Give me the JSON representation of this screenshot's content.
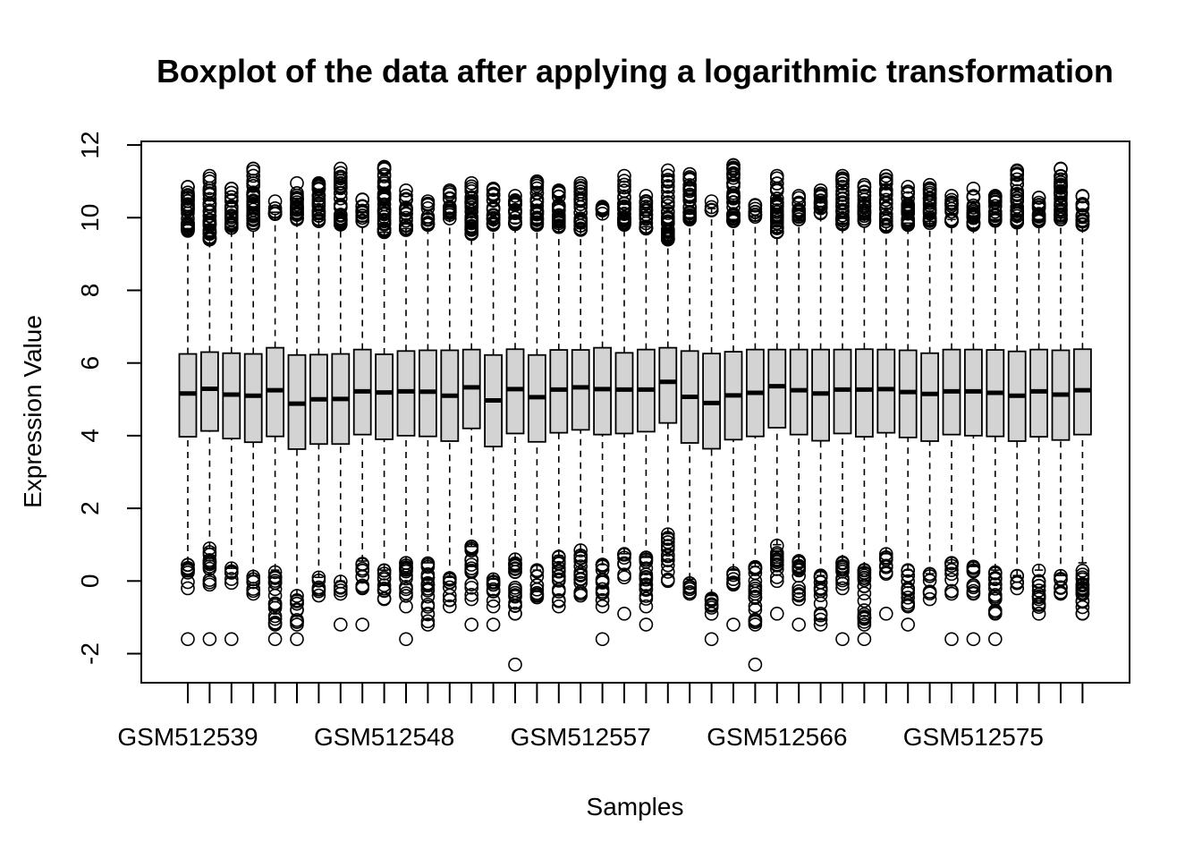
{
  "chart_data": {
    "type": "boxplot",
    "title": "Boxplot of the data after applying a logarithmic transformation",
    "xlabel": "Samples",
    "ylabel": "Expression Value",
    "ylim": [
      -2.8,
      12.1
    ],
    "yticks": [
      -2,
      0,
      2,
      4,
      6,
      8,
      10,
      12
    ],
    "first_sample_number": 512539,
    "sample_prefix": "GSM",
    "labeled_every": 9,
    "x_tick_labels": [
      "GSM512539",
      "GSM512548",
      "GSM512557",
      "GSM512566",
      "GSM512575"
    ],
    "box_fill": "#d3d3d3",
    "series": [
      {
        "q1": 3.97,
        "median": 5.16,
        "q3": 6.25,
        "whisker_low": 0.5,
        "whisker_high": 9.7,
        "out_low_min": -0.2,
        "out_low_max": 0.5,
        "out_high_min": 9.6,
        "out_high_max": 10.85,
        "extra_outliers": [
          -1.6
        ]
      },
      {
        "q1": 4.13,
        "median": 5.29,
        "q3": 6.3,
        "whisker_low": 0.9,
        "whisker_high": 9.5,
        "out_low_min": -0.1,
        "out_low_max": 0.9,
        "out_high_min": 9.4,
        "out_high_max": 11.15,
        "extra_outliers": [
          -1.6
        ]
      },
      {
        "q1": 3.92,
        "median": 5.13,
        "q3": 6.27,
        "whisker_low": 0.35,
        "whisker_high": 9.75,
        "out_low_min": -0.05,
        "out_low_max": 0.35,
        "out_high_min": 9.7,
        "out_high_max": 10.8,
        "extra_outliers": [
          -1.6
        ]
      },
      {
        "q1": 3.82,
        "median": 5.1,
        "q3": 6.25,
        "whisker_low": 0.15,
        "whisker_high": 9.8,
        "out_low_min": -0.35,
        "out_low_max": 0.15,
        "out_high_min": 9.8,
        "out_high_max": 11.35,
        "extra_outliers": []
      },
      {
        "q1": 3.98,
        "median": 5.25,
        "q3": 6.42,
        "whisker_low": 0.3,
        "whisker_high": 10.15,
        "out_low_min": -1.2,
        "out_low_max": 0.3,
        "out_high_min": 10.1,
        "out_high_max": 10.45,
        "extra_outliers": [
          -1.6
        ]
      },
      {
        "q1": 3.63,
        "median": 4.88,
        "q3": 6.22,
        "whisker_low": -0.4,
        "whisker_high": 9.95,
        "out_low_min": -1.2,
        "out_low_max": -0.4,
        "out_high_min": 9.95,
        "out_high_max": 10.95,
        "extra_outliers": [
          -1.6
        ]
      },
      {
        "q1": 3.77,
        "median": 5.0,
        "q3": 6.23,
        "whisker_low": 0.1,
        "whisker_high": 9.95,
        "out_low_min": -0.4,
        "out_low_max": 0.1,
        "out_high_min": 9.9,
        "out_high_max": 10.95,
        "extra_outliers": []
      },
      {
        "q1": 3.77,
        "median": 5.01,
        "q3": 6.25,
        "whisker_low": 0.0,
        "whisker_high": 9.8,
        "out_low_min": -0.35,
        "out_low_max": 0.0,
        "out_high_min": 9.8,
        "out_high_max": 11.35,
        "extra_outliers": [
          -1.2
        ]
      },
      {
        "q1": 4.03,
        "median": 5.22,
        "q3": 6.37,
        "whisker_low": 0.55,
        "whisker_high": 9.9,
        "out_low_min": -0.2,
        "out_low_max": 0.55,
        "out_high_min": 9.9,
        "out_high_max": 10.5,
        "extra_outliers": [
          -1.2
        ]
      },
      {
        "q1": 3.9,
        "median": 5.19,
        "q3": 6.24,
        "whisker_low": 0.3,
        "whisker_high": 9.6,
        "out_low_min": -0.5,
        "out_low_max": 0.3,
        "out_high_min": 9.6,
        "out_high_max": 11.4,
        "extra_outliers": []
      },
      {
        "q1": 4.0,
        "median": 5.22,
        "q3": 6.33,
        "whisker_low": 0.5,
        "whisker_high": 9.7,
        "out_low_min": -0.7,
        "out_low_max": 0.5,
        "out_high_min": 9.65,
        "out_high_max": 10.75,
        "extra_outliers": [
          -1.6
        ]
      },
      {
        "q1": 3.98,
        "median": 5.21,
        "q3": 6.35,
        "whisker_low": 0.5,
        "whisker_high": 9.85,
        "out_low_min": -1.2,
        "out_low_max": 0.5,
        "out_high_min": 9.8,
        "out_high_max": 10.45,
        "extra_outliers": []
      },
      {
        "q1": 3.85,
        "median": 5.1,
        "q3": 6.35,
        "whisker_low": 0.1,
        "whisker_high": 10.0,
        "out_low_min": -0.7,
        "out_low_max": 0.1,
        "out_high_min": 9.95,
        "out_high_max": 10.75,
        "extra_outliers": []
      },
      {
        "q1": 4.2,
        "median": 5.33,
        "q3": 6.37,
        "whisker_low": 0.95,
        "whisker_high": 9.6,
        "out_low_min": -0.5,
        "out_low_max": 0.95,
        "out_high_min": 9.55,
        "out_high_max": 10.95,
        "extra_outliers": [
          -1.2
        ]
      },
      {
        "q1": 3.7,
        "median": 4.97,
        "q3": 6.22,
        "whisker_low": 0.05,
        "whisker_high": 9.85,
        "out_low_min": -0.7,
        "out_low_max": 0.05,
        "out_high_min": 9.8,
        "out_high_max": 10.8,
        "extra_outliers": [
          -1.2
        ]
      },
      {
        "q1": 4.06,
        "median": 5.28,
        "q3": 6.38,
        "whisker_low": 0.6,
        "whisker_high": 9.85,
        "out_low_min": -0.9,
        "out_low_max": 0.6,
        "out_high_min": 9.8,
        "out_high_max": 10.6,
        "extra_outliers": [
          -2.3
        ]
      },
      {
        "q1": 3.83,
        "median": 5.06,
        "q3": 6.22,
        "whisker_low": 0.3,
        "whisker_high": 9.85,
        "out_low_min": -0.45,
        "out_low_max": 0.3,
        "out_high_min": 9.8,
        "out_high_max": 11.0,
        "extra_outliers": []
      },
      {
        "q1": 4.08,
        "median": 5.27,
        "q3": 6.36,
        "whisker_low": 0.7,
        "whisker_high": 9.75,
        "out_low_min": -0.7,
        "out_low_max": 0.7,
        "out_high_min": 9.7,
        "out_high_max": 10.75,
        "extra_outliers": []
      },
      {
        "q1": 4.16,
        "median": 5.33,
        "q3": 6.36,
        "whisker_low": 0.85,
        "whisker_high": 9.7,
        "out_low_min": -0.4,
        "out_low_max": 0.85,
        "out_high_min": 9.65,
        "out_high_max": 10.95,
        "extra_outliers": []
      },
      {
        "q1": 4.03,
        "median": 5.28,
        "q3": 6.42,
        "whisker_low": 0.45,
        "whisker_high": 10.1,
        "out_low_min": -0.7,
        "out_low_max": 0.45,
        "out_high_min": 10.05,
        "out_high_max": 10.3,
        "extra_outliers": [
          -1.6
        ]
      },
      {
        "q1": 4.06,
        "median": 5.27,
        "q3": 6.28,
        "whisker_low": 0.75,
        "whisker_high": 9.85,
        "out_low_min": 0.1,
        "out_low_max": 0.75,
        "out_high_min": 9.8,
        "out_high_max": 11.15,
        "extra_outliers": [
          -0.9
        ]
      },
      {
        "q1": 4.11,
        "median": 5.27,
        "q3": 6.37,
        "whisker_low": 0.65,
        "whisker_high": 9.75,
        "out_low_min": -0.7,
        "out_low_max": 0.65,
        "out_high_min": 9.7,
        "out_high_max": 10.6,
        "extra_outliers": [
          -1.2
        ]
      },
      {
        "q1": 4.35,
        "median": 5.48,
        "q3": 6.42,
        "whisker_low": 1.3,
        "whisker_high": 9.45,
        "out_low_min": 0.0,
        "out_low_max": 1.3,
        "out_high_min": 9.4,
        "out_high_max": 11.3,
        "extra_outliers": []
      },
      {
        "q1": 3.8,
        "median": 5.07,
        "q3": 6.33,
        "whisker_low": 0.05,
        "whisker_high": 10.0,
        "out_low_min": -0.35,
        "out_low_max": 0.05,
        "out_high_min": 9.95,
        "out_high_max": 11.2,
        "extra_outliers": []
      },
      {
        "q1": 3.64,
        "median": 4.9,
        "q3": 6.26,
        "whisker_low": -0.4,
        "whisker_high": 10.25,
        "out_low_min": -0.9,
        "out_low_max": -0.4,
        "out_high_min": 10.2,
        "out_high_max": 10.45,
        "extra_outliers": [
          -1.6
        ]
      },
      {
        "q1": 3.89,
        "median": 5.11,
        "q3": 6.31,
        "whisker_low": 0.3,
        "whisker_high": 9.95,
        "out_low_min": -0.1,
        "out_low_max": 0.3,
        "out_high_min": 9.9,
        "out_high_max": 11.45,
        "extra_outliers": [
          -1.2
        ]
      },
      {
        "q1": 3.98,
        "median": 5.18,
        "q3": 6.37,
        "whisker_low": 0.4,
        "whisker_high": 10.05,
        "out_low_min": -1.2,
        "out_low_max": 0.4,
        "out_high_min": 10.0,
        "out_high_max": 10.35,
        "extra_outliers": [
          -2.3
        ]
      },
      {
        "q1": 4.22,
        "median": 5.36,
        "q3": 6.37,
        "whisker_low": 1.0,
        "whisker_high": 9.65,
        "out_low_min": 0.0,
        "out_low_max": 1.0,
        "out_high_min": 9.6,
        "out_high_max": 11.15,
        "extra_outliers": [
          -0.9
        ]
      },
      {
        "q1": 4.03,
        "median": 5.25,
        "q3": 6.37,
        "whisker_low": 0.55,
        "whisker_high": 9.95,
        "out_low_min": -0.5,
        "out_low_max": 0.55,
        "out_high_min": 9.9,
        "out_high_max": 10.6,
        "extra_outliers": [
          -1.2
        ]
      },
      {
        "q1": 3.86,
        "median": 5.16,
        "q3": 6.37,
        "whisker_low": 0.15,
        "whisker_high": 10.15,
        "out_low_min": -1.2,
        "out_low_max": 0.15,
        "out_high_min": 10.1,
        "out_high_max": 10.75,
        "extra_outliers": []
      },
      {
        "q1": 4.06,
        "median": 5.27,
        "q3": 6.37,
        "whisker_low": 0.55,
        "whisker_high": 9.85,
        "out_low_min": -0.2,
        "out_low_max": 0.55,
        "out_high_min": 9.8,
        "out_high_max": 11.15,
        "extra_outliers": [
          -1.6
        ]
      },
      {
        "q1": 3.97,
        "median": 5.27,
        "q3": 6.38,
        "whisker_low": 0.35,
        "whisker_high": 9.95,
        "out_low_min": -1.2,
        "out_low_max": 0.35,
        "out_high_min": 9.9,
        "out_high_max": 10.9,
        "extra_outliers": [
          -1.6
        ]
      },
      {
        "q1": 4.08,
        "median": 5.28,
        "q3": 6.37,
        "whisker_low": 0.75,
        "whisker_high": 9.8,
        "out_low_min": 0.2,
        "out_low_max": 0.75,
        "out_high_min": 9.75,
        "out_high_max": 11.15,
        "extra_outliers": [
          -0.9
        ]
      },
      {
        "q1": 3.95,
        "median": 5.2,
        "q3": 6.35,
        "whisker_low": 0.3,
        "whisker_high": 9.85,
        "out_low_min": -0.7,
        "out_low_max": 0.3,
        "out_high_min": 9.8,
        "out_high_max": 10.85,
        "extra_outliers": [
          -1.2
        ]
      },
      {
        "q1": 3.85,
        "median": 5.15,
        "q3": 6.27,
        "whisker_low": 0.2,
        "whisker_high": 9.9,
        "out_low_min": -0.5,
        "out_low_max": 0.2,
        "out_high_min": 9.85,
        "out_high_max": 10.9,
        "extra_outliers": []
      },
      {
        "q1": 4.03,
        "median": 5.22,
        "q3": 6.37,
        "whisker_low": 0.5,
        "whisker_high": 9.95,
        "out_low_min": -0.35,
        "out_low_max": 0.5,
        "out_high_min": 9.9,
        "out_high_max": 10.6,
        "extra_outliers": [
          -1.6
        ]
      },
      {
        "q1": 4.0,
        "median": 5.22,
        "q3": 6.37,
        "whisker_low": 0.4,
        "whisker_high": 9.85,
        "out_low_min": -0.35,
        "out_low_max": 0.4,
        "out_high_min": 9.8,
        "out_high_max": 10.8,
        "extra_outliers": [
          -1.6
        ]
      },
      {
        "q1": 3.98,
        "median": 5.18,
        "q3": 6.36,
        "whisker_low": 0.3,
        "whisker_high": 9.95,
        "out_low_min": -0.9,
        "out_low_max": 0.3,
        "out_high_min": 9.9,
        "out_high_max": 10.6,
        "extra_outliers": [
          -1.6
        ]
      },
      {
        "q1": 3.85,
        "median": 5.1,
        "q3": 6.32,
        "whisker_low": 0.15,
        "whisker_high": 9.9,
        "out_low_min": -0.2,
        "out_low_max": 0.15,
        "out_high_min": 9.85,
        "out_high_max": 11.3,
        "extra_outliers": []
      },
      {
        "q1": 3.97,
        "median": 5.22,
        "q3": 6.37,
        "whisker_low": 0.3,
        "whisker_high": 9.95,
        "out_low_min": -0.9,
        "out_low_max": 0.3,
        "out_high_min": 9.9,
        "out_high_max": 10.55,
        "extra_outliers": []
      },
      {
        "q1": 3.88,
        "median": 5.13,
        "q3": 6.35,
        "whisker_low": 0.15,
        "whisker_high": 10.0,
        "out_low_min": -0.35,
        "out_low_max": 0.15,
        "out_high_min": 9.95,
        "out_high_max": 11.35,
        "extra_outliers": []
      },
      {
        "q1": 4.03,
        "median": 5.25,
        "q3": 6.38,
        "whisker_low": 0.5,
        "whisker_high": 9.85,
        "out_low_min": -0.9,
        "out_low_max": 0.5,
        "out_high_min": 9.8,
        "out_high_max": 10.6,
        "extra_outliers": []
      }
    ]
  }
}
